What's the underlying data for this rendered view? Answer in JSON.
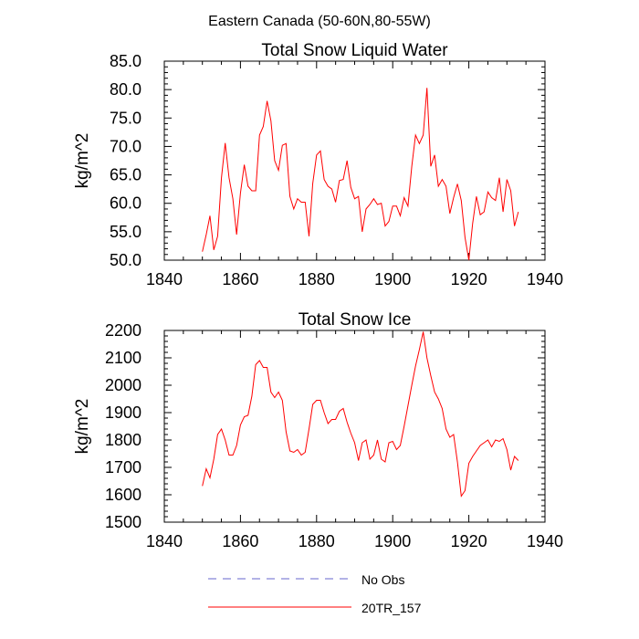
{
  "figure_title": "Eastern Canada (50-60N,80-55W)",
  "colors": {
    "series": "#ff0000",
    "no_obs": "#6666cc",
    "axis": "#000000"
  },
  "legend": [
    {
      "label": "No Obs",
      "style": "dashed",
      "color": "#6666cc"
    },
    {
      "label": "20TR_157",
      "style": "solid",
      "color": "#ff0000"
    }
  ],
  "chart_data": [
    {
      "type": "line",
      "title": "Total Snow Liquid Water",
      "xlabel": "",
      "ylabel": "kg/m^2",
      "xlim": [
        1840,
        1940
      ],
      "ylim": [
        50,
        85
      ],
      "xticks": [
        1840,
        1860,
        1880,
        1900,
        1920,
        1940
      ],
      "xtick_labels": [
        "1840",
        "1860",
        "1880",
        "1900",
        "1920",
        "1940"
      ],
      "yticks": [
        50,
        55,
        60,
        65,
        70,
        75,
        80,
        85
      ],
      "ytick_labels": [
        "50.0",
        "55.0",
        "60.0",
        "65.0",
        "70.0",
        "75.0",
        "80.0",
        "85.0"
      ],
      "grid": false,
      "series": [
        {
          "name": "20TR_157",
          "x": [
            1850,
            1851,
            1852,
            1853,
            1854,
            1855,
            1856,
            1857,
            1858,
            1859,
            1860,
            1861,
            1862,
            1863,
            1864,
            1865,
            1866,
            1867,
            1868,
            1869,
            1870,
            1871,
            1872,
            1873,
            1874,
            1875,
            1876,
            1877,
            1878,
            1879,
            1880,
            1881,
            1882,
            1883,
            1884,
            1885,
            1886,
            1887,
            1888,
            1889,
            1890,
            1891,
            1892,
            1893,
            1894,
            1895,
            1896,
            1897,
            1898,
            1899,
            1900,
            1901,
            1902,
            1903,
            1904,
            1905,
            1906,
            1907,
            1908,
            1909,
            1910,
            1911,
            1912,
            1913,
            1914,
            1915,
            1916,
            1917,
            1918,
            1919,
            1920,
            1921,
            1922,
            1923,
            1924,
            1925,
            1926,
            1927,
            1928,
            1929,
            1930,
            1931,
            1932,
            1933
          ],
          "values": [
            51.5,
            54.5,
            57.8,
            51.8,
            54.2,
            64.5,
            70.6,
            64.5,
            60.8,
            54.5,
            61.8,
            66.8,
            63.0,
            62.2,
            62.2,
            72.0,
            73.5,
            78.0,
            74.5,
            67.5,
            65.8,
            70.2,
            70.5,
            61.2,
            59.0,
            60.8,
            60.2,
            60.2,
            54.2,
            63.5,
            68.5,
            69.2,
            64.2,
            63.0,
            62.5,
            60.2,
            64.0,
            64.2,
            67.5,
            62.8,
            60.8,
            61.2,
            55.0,
            59.0,
            59.8,
            60.8,
            59.8,
            60.0,
            56.0,
            56.8,
            59.5,
            59.5,
            57.8,
            61.0,
            59.5,
            66.5,
            72.0,
            70.5,
            72.0,
            80.3,
            66.5,
            68.5,
            63.0,
            64.2,
            63.0,
            58.2,
            61.0,
            63.4,
            60.5,
            54.0,
            50.0,
            56.5,
            61.2,
            58.0,
            58.5,
            62.0,
            61.0,
            60.5,
            64.5,
            58.5,
            64.2,
            62.2,
            56.0,
            58.5
          ]
        }
      ]
    },
    {
      "type": "line",
      "title": "Total Snow Ice",
      "xlabel": "",
      "ylabel": "kg/m^2",
      "xlim": [
        1840,
        1940
      ],
      "ylim": [
        1500,
        2200
      ],
      "xticks": [
        1840,
        1860,
        1880,
        1900,
        1920,
        1940
      ],
      "xtick_labels": [
        "1840",
        "1860",
        "1880",
        "1900",
        "1920",
        "1940"
      ],
      "yticks": [
        1500,
        1600,
        1700,
        1800,
        1900,
        2000,
        2100,
        2200
      ],
      "ytick_labels": [
        "1500",
        "1600",
        "1700",
        "1800",
        "1900",
        "2000",
        "2100",
        "2200"
      ],
      "grid": false,
      "series": [
        {
          "name": "20TR_157",
          "x": [
            1850,
            1851,
            1852,
            1853,
            1854,
            1855,
            1856,
            1857,
            1858,
            1859,
            1860,
            1861,
            1862,
            1863,
            1864,
            1865,
            1866,
            1867,
            1868,
            1869,
            1870,
            1871,
            1872,
            1873,
            1874,
            1875,
            1876,
            1877,
            1878,
            1879,
            1880,
            1881,
            1882,
            1883,
            1884,
            1885,
            1886,
            1887,
            1888,
            1889,
            1890,
            1891,
            1892,
            1893,
            1894,
            1895,
            1896,
            1897,
            1898,
            1899,
            1900,
            1901,
            1902,
            1903,
            1904,
            1905,
            1906,
            1907,
            1908,
            1909,
            1910,
            1911,
            1912,
            1913,
            1914,
            1915,
            1916,
            1917,
            1918,
            1919,
            1920,
            1921,
            1922,
            1923,
            1924,
            1925,
            1926,
            1927,
            1928,
            1929,
            1930,
            1931,
            1932,
            1933
          ],
          "values": [
            1632,
            1695,
            1662,
            1730,
            1820,
            1840,
            1800,
            1745,
            1745,
            1780,
            1855,
            1885,
            1890,
            1960,
            2075,
            2090,
            2065,
            2065,
            1975,
            1955,
            1975,
            1945,
            1830,
            1760,
            1755,
            1765,
            1745,
            1755,
            1840,
            1930,
            1945,
            1945,
            1900,
            1860,
            1875,
            1875,
            1905,
            1915,
            1865,
            1825,
            1790,
            1725,
            1790,
            1800,
            1730,
            1745,
            1800,
            1730,
            1720,
            1790,
            1795,
            1765,
            1780,
            1850,
            1925,
            2000,
            2070,
            2130,
            2195,
            2100,
            2035,
            1975,
            1950,
            1915,
            1840,
            1810,
            1820,
            1720,
            1595,
            1615,
            1715,
            1740,
            1760,
            1780,
            1790,
            1800,
            1775,
            1800,
            1795,
            1805,
            1765,
            1690,
            1740,
            1725
          ]
        }
      ]
    }
  ]
}
